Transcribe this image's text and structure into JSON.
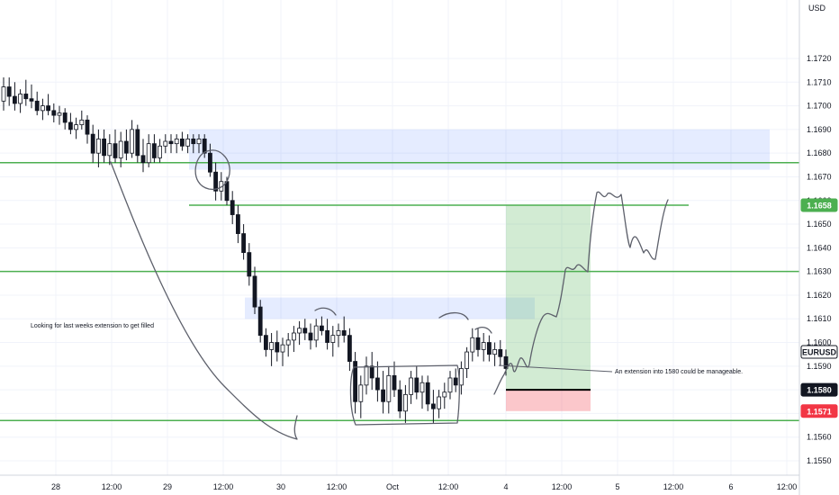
{
  "currency": "USD",
  "chart_data": {
    "type": "candlestick",
    "symbol": "EURUSD",
    "price_axis": {
      "ticks": [
        "1.1720",
        "1.1710",
        "1.1700",
        "1.1690",
        "1.1680",
        "1.1670",
        "1.1660",
        "1.1650",
        "1.1640",
        "1.1630",
        "1.1620",
        "1.1610",
        "1.1600",
        "1.1590",
        "1.1580",
        "1.1570",
        "1.1560",
        "1.1550"
      ],
      "range": [
        1.1546,
        1.1728
      ]
    },
    "time_axis": {
      "ticks": [
        "28",
        "12:00",
        "29",
        "12:00",
        "30",
        "12:00",
        "Oct",
        "12:00",
        "4",
        "12:00",
        "5",
        "12:00",
        "6",
        "12:00"
      ]
    },
    "price_tags": [
      {
        "label": "1.1658",
        "price": 1.1658,
        "bg": "#4caf50",
        "fg": "#ffffff"
      },
      {
        "label": "EURUSD",
        "price": 1.1596,
        "bg": "#ffffff",
        "fg": "#131722",
        "border": "#131722"
      },
      {
        "label": "1.1580",
        "price": 1.158,
        "bg": "#131722",
        "fg": "#ffffff"
      },
      {
        "label": "1.1571",
        "price": 1.1571,
        "bg": "#f23645",
        "fg": "#ffffff"
      }
    ],
    "horizontal_levels": [
      1.1676,
      1.1658,
      1.163,
      1.1567
    ],
    "zones": [
      {
        "kind": "supply-zone",
        "from_price": 1.169,
        "to_price": 1.1673
      },
      {
        "kind": "supply-zone",
        "from_price": 1.1619,
        "to_price": 1.161
      },
      {
        "kind": "target-zone",
        "from_price": 1.1658,
        "to_price": 1.158
      },
      {
        "kind": "stop-zone",
        "from_price": 1.158,
        "to_price": 1.1571
      }
    ],
    "annotations": [
      "Looking for last weeks extension to get filled",
      "An extension into 1580 could be manageable."
    ],
    "colors": {
      "up": "#089981",
      "down": "#131722",
      "level": "#4caf50",
      "stop": "#f23645"
    },
    "candles": [
      [
        1.1702,
        1.1712,
        1.1698,
        1.1708
      ],
      [
        1.1708,
        1.1712,
        1.17,
        1.1704
      ],
      [
        1.1704,
        1.171,
        1.1698,
        1.1701
      ],
      [
        1.1701,
        1.1707,
        1.1697,
        1.1705
      ],
      [
        1.1705,
        1.1711,
        1.17,
        1.1703
      ],
      [
        1.1703,
        1.1709,
        1.1699,
        1.1702
      ],
      [
        1.1702,
        1.1706,
        1.1696,
        1.1698
      ],
      [
        1.1698,
        1.1703,
        1.1694,
        1.17
      ],
      [
        1.17,
        1.1705,
        1.1696,
        1.1698
      ],
      [
        1.1698,
        1.1701,
        1.1693,
        1.1696
      ],
      [
        1.1696,
        1.17,
        1.1692,
        1.1697
      ],
      [
        1.1697,
        1.1699,
        1.169,
        1.1693
      ],
      [
        1.1693,
        1.1697,
        1.1688,
        1.169
      ],
      [
        1.169,
        1.1695,
        1.1686,
        1.1692
      ],
      [
        1.1692,
        1.1698,
        1.169,
        1.1694
      ],
      [
        1.1694,
        1.1696,
        1.1684,
        1.1688
      ],
      [
        1.1688,
        1.1692,
        1.1676,
        1.168
      ],
      [
        1.168,
        1.169,
        1.1674,
        1.1686
      ],
      [
        1.1686,
        1.169,
        1.1676,
        1.1679
      ],
      [
        1.1679,
        1.1688,
        1.1675,
        1.1684
      ],
      [
        1.1684,
        1.169,
        1.1676,
        1.1678
      ],
      [
        1.1678,
        1.1689,
        1.1674,
        1.1685
      ],
      [
        1.1685,
        1.169,
        1.1677,
        1.168
      ],
      [
        1.168,
        1.1694,
        1.1678,
        1.169
      ],
      [
        1.169,
        1.1692,
        1.1676,
        1.1679
      ],
      [
        1.1679,
        1.1686,
        1.1672,
        1.1676
      ],
      [
        1.1676,
        1.1688,
        1.1674,
        1.1684
      ],
      [
        1.1684,
        1.1688,
        1.1676,
        1.1678
      ],
      [
        1.1678,
        1.1686,
        1.1676,
        1.1683
      ],
      [
        1.1683,
        1.1688,
        1.168,
        1.1685
      ],
      [
        1.1685,
        1.1688,
        1.168,
        1.1684
      ],
      [
        1.1684,
        1.1688,
        1.168,
        1.1686
      ],
      [
        1.1686,
        1.1689,
        1.1681,
        1.1683
      ],
      [
        1.1683,
        1.1688,
        1.168,
        1.1686
      ],
      [
        1.1686,
        1.1688,
        1.168,
        1.1684
      ],
      [
        1.1684,
        1.1688,
        1.168,
        1.1686
      ],
      [
        1.1686,
        1.1688,
        1.1678,
        1.168
      ],
      [
        1.168,
        1.1684,
        1.167,
        1.1672
      ],
      [
        1.1672,
        1.1676,
        1.166,
        1.1664
      ],
      [
        1.1664,
        1.1672,
        1.166,
        1.1668
      ],
      [
        1.1668,
        1.167,
        1.1658,
        1.166
      ],
      [
        1.166,
        1.1664,
        1.165,
        1.1654
      ],
      [
        1.1654,
        1.1658,
        1.1642,
        1.1646
      ],
      [
        1.1646,
        1.165,
        1.1635,
        1.1638
      ],
      [
        1.1638,
        1.1642,
        1.1624,
        1.1628
      ],
      [
        1.1628,
        1.1632,
        1.1612,
        1.1615
      ],
      [
        1.1615,
        1.1618,
        1.16,
        1.1603
      ],
      [
        1.1603,
        1.1606,
        1.1594,
        1.1597
      ],
      [
        1.1597,
        1.1604,
        1.159,
        1.16
      ],
      [
        1.16,
        1.1605,
        1.1592,
        1.1596
      ],
      [
        1.1596,
        1.1602,
        1.159,
        1.1599
      ],
      [
        1.1599,
        1.1604,
        1.1594,
        1.1601
      ],
      [
        1.1601,
        1.1607,
        1.1596,
        1.1604
      ],
      [
        1.1604,
        1.1609,
        1.1599,
        1.1606
      ],
      [
        1.1606,
        1.161,
        1.1601,
        1.1604
      ],
      [
        1.1604,
        1.1608,
        1.1597,
        1.1601
      ],
      [
        1.1601,
        1.161,
        1.1598,
        1.1607
      ],
      [
        1.1607,
        1.1611,
        1.1603,
        1.1605
      ],
      [
        1.1605,
        1.161,
        1.1597,
        1.16
      ],
      [
        1.16,
        1.1607,
        1.1594,
        1.1603
      ],
      [
        1.1603,
        1.1608,
        1.1598,
        1.1605
      ],
      [
        1.1605,
        1.1611,
        1.16,
        1.1603
      ],
      [
        1.1603,
        1.1606,
        1.1588,
        1.1592
      ],
      [
        1.1592,
        1.1596,
        1.157,
        1.1575
      ],
      [
        1.1575,
        1.1586,
        1.1568,
        1.1582
      ],
      [
        1.1582,
        1.1594,
        1.1578,
        1.159
      ],
      [
        1.159,
        1.1596,
        1.158,
        1.1585
      ],
      [
        1.1585,
        1.1592,
        1.1575,
        1.158
      ],
      [
        1.158,
        1.1588,
        1.157,
        1.1575
      ],
      [
        1.1575,
        1.159,
        1.157,
        1.1586
      ],
      [
        1.1586,
        1.1592,
        1.1577,
        1.158
      ],
      [
        1.158,
        1.1584,
        1.1568,
        1.1571
      ],
      [
        1.1571,
        1.1582,
        1.1566,
        1.1578
      ],
      [
        1.1578,
        1.1588,
        1.1574,
        1.1585
      ],
      [
        1.1585,
        1.159,
        1.1576,
        1.1579
      ],
      [
        1.1579,
        1.1586,
        1.1572,
        1.1583
      ],
      [
        1.1583,
        1.1586,
        1.1571,
        1.1574
      ],
      [
        1.1574,
        1.158,
        1.1566,
        1.1572
      ],
      [
        1.1572,
        1.158,
        1.1568,
        1.1577
      ],
      [
        1.1577,
        1.1583,
        1.1572,
        1.1579
      ],
      [
        1.1579,
        1.1588,
        1.1576,
        1.1585
      ],
      [
        1.1585,
        1.1589,
        1.1579,
        1.1582
      ],
      [
        1.1582,
        1.1592,
        1.1578,
        1.1589
      ],
      [
        1.1589,
        1.1598,
        1.1585,
        1.1596
      ],
      [
        1.1596,
        1.1606,
        1.1592,
        1.1602
      ],
      [
        1.1602,
        1.1606,
        1.1594,
        1.1597
      ],
      [
        1.1597,
        1.1604,
        1.1592,
        1.16
      ],
      [
        1.16,
        1.1603,
        1.1592,
        1.1595
      ],
      [
        1.1595,
        1.16,
        1.159,
        1.1597
      ],
      [
        1.1597,
        1.1601,
        1.159,
        1.1594
      ],
      [
        1.1594,
        1.1597,
        1.1586,
        1.1589
      ]
    ]
  }
}
